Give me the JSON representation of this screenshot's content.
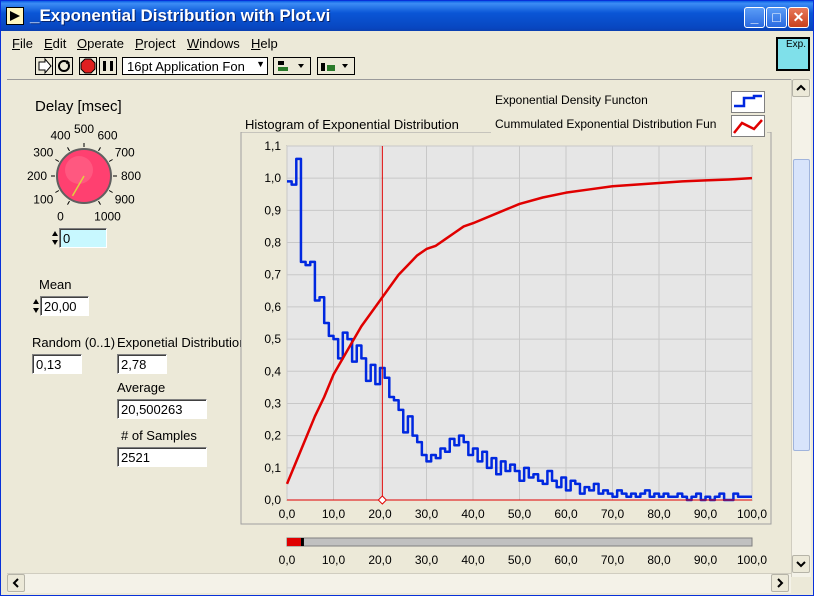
{
  "window": {
    "title": "_Exponential Distribution with Plot.vi",
    "vi_icon_label": "Exp."
  },
  "menu": [
    "File",
    "Edit",
    "Operate",
    "Project",
    "Windows",
    "Help"
  ],
  "toolbar": {
    "font_selector": "16pt Application Fon"
  },
  "colors": {
    "density": "#0028e0",
    "cumulative": "#e00000",
    "cursor": "#e00000",
    "plot_bg": "#e6e6e6",
    "grid": "#c8c8c8"
  },
  "controls": {
    "delay": {
      "label": "Delay [msec]",
      "value": "0",
      "ticks": [
        "0",
        "100",
        "200",
        "300",
        "400",
        "500",
        "600",
        "700",
        "800",
        "900",
        "1000"
      ],
      "knob_value": 0
    },
    "mean": {
      "label": "Mean",
      "value": "20,00"
    },
    "random": {
      "label": "Random (0..1)",
      "value": "0,13"
    },
    "exp_dist": {
      "label": "Exponetial Distribution",
      "value": "2,78"
    },
    "average": {
      "label": "Average",
      "value": "20,500263"
    },
    "samples": {
      "label": "# of Samples",
      "value": "2521"
    }
  },
  "legend": [
    {
      "name": "Exponential Density Functon"
    },
    {
      "name": "Cummulated Exponential Distribution Fun"
    }
  ],
  "slider": {
    "ticks": [
      "0,0",
      "10,0",
      "20,0",
      "30,0",
      "40,0",
      "50,0",
      "60,0",
      "70,0",
      "80,0",
      "90,0",
      "100,0"
    ],
    "value": 3
  },
  "chart_data": {
    "type": "line",
    "title": "Histogram of Exponential Distribution",
    "xlim": [
      0,
      100
    ],
    "ylim": [
      0,
      1.1
    ],
    "x_ticks": [
      "0,0",
      "10,0",
      "20,0",
      "30,0",
      "40,0",
      "50,0",
      "60,0",
      "70,0",
      "80,0",
      "90,0",
      "100,0"
    ],
    "y_ticks": [
      "0,0",
      "0,1",
      "0,2",
      "0,3",
      "0,4",
      "0,5",
      "0,6",
      "0,7",
      "0,8",
      "0,9",
      "1,0",
      "1,1"
    ],
    "grid": true,
    "cursor_x": 20.5,
    "series": [
      {
        "name": "Exponential Density Functon",
        "step": true,
        "x": [
          0,
          1,
          2,
          3,
          4,
          5,
          6,
          7,
          8,
          9,
          10,
          11,
          12,
          13,
          14,
          15,
          16,
          17,
          18,
          19,
          20,
          21,
          22,
          23,
          24,
          25,
          26,
          27,
          28,
          29,
          30,
          31,
          32,
          33,
          34,
          35,
          36,
          37,
          38,
          39,
          40,
          41,
          42,
          43,
          44,
          45,
          46,
          47,
          48,
          49,
          50,
          51,
          52,
          53,
          54,
          55,
          56,
          57,
          58,
          59,
          60,
          61,
          62,
          63,
          64,
          65,
          66,
          67,
          68,
          69,
          70,
          71,
          72,
          73,
          74,
          75,
          76,
          77,
          78,
          79,
          80,
          81,
          82,
          83,
          84,
          85,
          86,
          87,
          88,
          89,
          90,
          91,
          92,
          93,
          94,
          95,
          96,
          97,
          98,
          99,
          100
        ],
        "y": [
          0.99,
          0.98,
          1.06,
          0.74,
          0.73,
          0.74,
          0.62,
          0.63,
          0.55,
          0.51,
          0.5,
          0.44,
          0.52,
          0.5,
          0.43,
          0.48,
          0.44,
          0.37,
          0.42,
          0.36,
          0.41,
          0.38,
          0.32,
          0.31,
          0.28,
          0.21,
          0.26,
          0.2,
          0.18,
          0.14,
          0.12,
          0.14,
          0.13,
          0.16,
          0.15,
          0.19,
          0.17,
          0.2,
          0.18,
          0.14,
          0.16,
          0.12,
          0.15,
          0.1,
          0.13,
          0.08,
          0.12,
          0.09,
          0.11,
          0.09,
          0.06,
          0.1,
          0.07,
          0.08,
          0.06,
          0.05,
          0.09,
          0.06,
          0.04,
          0.07,
          0.03,
          0.06,
          0.05,
          0.02,
          0.04,
          0.03,
          0.05,
          0.02,
          0.03,
          0.02,
          0.01,
          0.03,
          0.02,
          0.01,
          0.02,
          0.01,
          0.02,
          0.03,
          0.01,
          0.02,
          0.01,
          0.02,
          0.01,
          0.01,
          0.02,
          0.01,
          0.0,
          0.01,
          0.02,
          0.0,
          0.01,
          0.0,
          0.01,
          0.02,
          0.0,
          0.0,
          0.02,
          0.01,
          0.01,
          0.01,
          0.01
        ]
      },
      {
        "name": "Cummulated Exponential Distribution Fun",
        "step": false,
        "x": [
          0,
          2,
          4,
          6,
          8,
          10,
          12,
          14,
          16,
          18,
          20,
          22,
          24,
          26,
          28,
          30,
          32,
          34,
          36,
          38,
          40,
          45,
          50,
          55,
          60,
          65,
          70,
          75,
          80,
          85,
          90,
          95,
          100
        ],
        "y": [
          0.05,
          0.12,
          0.19,
          0.26,
          0.32,
          0.39,
          0.44,
          0.49,
          0.54,
          0.58,
          0.62,
          0.66,
          0.7,
          0.73,
          0.76,
          0.78,
          0.79,
          0.81,
          0.83,
          0.85,
          0.86,
          0.89,
          0.92,
          0.94,
          0.955,
          0.965,
          0.975,
          0.98,
          0.985,
          0.99,
          0.993,
          0.996,
          1.0
        ]
      }
    ]
  }
}
